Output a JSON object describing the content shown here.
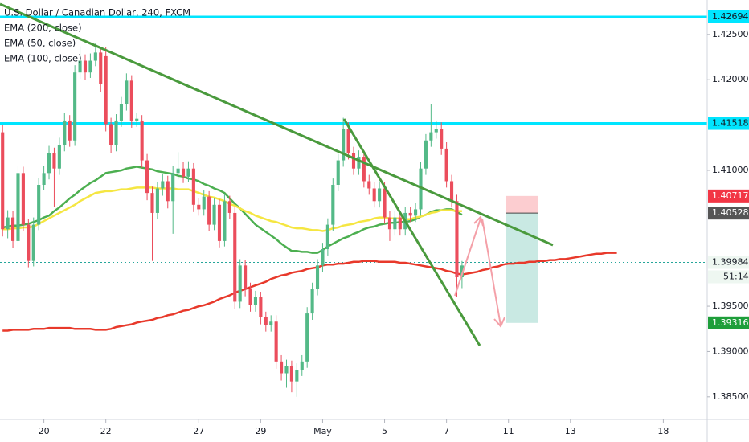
{
  "chart_data": {
    "type": "candlestick",
    "title": "U.S. Dollar / Canadian Dollar, 240, FXCM",
    "categories": [
      null,
      null,
      null,
      null,
      null,
      null,
      null,
      null,
      "20",
      null,
      null,
      null,
      null,
      null,
      null,
      null,
      null,
      null,
      null,
      null,
      "22",
      null,
      null,
      null,
      null,
      null,
      null,
      null,
      null,
      null,
      null,
      null,
      null,
      null,
      null,
      null,
      null,
      null,
      "27",
      null,
      null,
      null,
      null,
      null,
      null,
      null,
      null,
      null,
      null,
      null,
      "29",
      null,
      null,
      null,
      null,
      null,
      null,
      null,
      null,
      null,
      null,
      null,
      "May",
      null,
      null,
      null,
      null,
      null,
      null,
      null,
      null,
      null,
      null,
      null,
      "5",
      null,
      null,
      null,
      null,
      null,
      null,
      null,
      null,
      null,
      null,
      null,
      "7",
      null,
      null,
      null,
      null,
      null,
      null,
      null,
      null,
      null,
      null,
      null,
      "11",
      null,
      null,
      null,
      null,
      null,
      null,
      null,
      null,
      null,
      null,
      null,
      "13",
      null,
      null,
      null,
      null,
      null,
      null,
      null,
      null,
      null,
      null,
      null,
      null,
      null,
      null,
      null,
      null,
      null,
      "18",
      null,
      null,
      null,
      null,
      null,
      null,
      null,
      null
    ],
    "open": [
      1.4142,
      1.4035,
      1.4048,
      1.4022,
      1.4097,
      1.404,
      1.4,
      1.404,
      1.4084,
      1.4097,
      1.4119,
      1.4102,
      1.4128,
      1.4155,
      1.4133,
      1.4208,
      1.4221,
      1.4208,
      1.4221,
      1.423,
      1.4226,
      1.4151,
      1.4128,
      1.4155,
      1.4173,
      1.4199,
      1.4155,
      1.4155,
      1.4111,
      1.4075,
      1.4053,
      1.408,
      1.4088,
      1.4066,
      1.4097,
      1.4102,
      1.4093,
      1.4102,
      1.4062,
      1.4057,
      1.4071,
      1.404,
      1.4062,
      1.4022,
      1.4066,
      1.4053,
      1.3955,
      1.3995,
      1.3969,
      1.3951,
      1.396,
      1.3938,
      1.3929,
      1.3933,
      1.3889,
      1.3876,
      1.3884,
      1.3867,
      1.388,
      1.3889,
      1.3942,
      1.3969,
      1.3995,
      1.4013,
      1.404,
      1.4084,
      1.4111,
      1.4146,
      1.4119,
      1.4102,
      1.4115,
      1.4088,
      1.408,
      1.4066,
      1.408,
      1.4048,
      1.4035,
      1.4048,
      1.4035,
      1.4053,
      1.405,
      1.4057,
      1.4102,
      1.4133,
      1.4142,
      1.4146,
      1.4124,
      1.4088,
      1.4066,
      1.3982,
      null,
      null,
      null,
      null,
      null,
      null,
      null,
      null,
      null,
      null,
      null,
      null,
      null,
      null,
      null,
      null,
      null,
      null,
      null,
      null,
      null,
      null,
      null,
      null,
      null,
      null,
      null,
      null,
      null,
      null,
      null,
      null,
      null,
      null,
      null,
      null,
      null,
      null,
      null,
      null,
      null,
      null,
      null,
      null,
      null,
      null,
      null
    ],
    "high": [
      1.415,
      1.4056,
      1.4055,
      1.4105,
      1.4104,
      1.4046,
      1.4048,
      1.4092,
      1.4105,
      1.4127,
      1.4125,
      1.4136,
      1.4163,
      1.4161,
      1.4216,
      1.4237,
      1.4228,
      1.4229,
      1.424,
      1.4236,
      1.4236,
      1.4158,
      1.4162,
      1.4181,
      1.4207,
      1.4205,
      1.4163,
      1.4161,
      1.4118,
      1.4082,
      1.4087,
      1.4096,
      1.4094,
      1.4105,
      1.412,
      1.4109,
      1.411,
      1.4108,
      1.4069,
      1.4078,
      1.4077,
      1.4069,
      1.4068,
      1.4074,
      1.4072,
      1.406,
      1.4002,
      1.4001,
      1.3976,
      1.3967,
      1.3966,
      1.3944,
      1.394,
      1.394,
      1.3896,
      1.3891,
      1.389,
      1.3887,
      1.3896,
      1.3949,
      1.3976,
      1.4002,
      1.402,
      1.4047,
      1.4091,
      1.4118,
      1.4158,
      1.4153,
      1.4126,
      1.4122,
      1.4122,
      1.4095,
      1.4087,
      1.4087,
      1.4087,
      1.4055,
      1.4055,
      1.4055,
      1.406,
      1.406,
      1.4064,
      1.4109,
      1.414,
      1.4173,
      1.4155,
      1.4153,
      1.4131,
      1.4095,
      1.4073,
      1.4,
      null,
      null,
      null,
      null,
      null,
      null,
      null,
      null,
      null,
      null,
      null,
      null,
      null,
      null,
      null,
      null,
      null,
      null,
      null,
      null,
      null,
      null,
      null,
      null,
      null,
      null,
      null,
      null,
      null,
      null,
      null,
      null,
      null,
      null,
      null,
      null,
      null,
      null,
      null,
      null,
      null,
      null,
      null,
      null,
      null,
      null,
      null
    ],
    "low": [
      1.4027,
      1.4025,
      1.4014,
      1.4015,
      1.4033,
      1.3993,
      1.3994,
      1.4034,
      1.4078,
      1.409,
      1.406,
      1.4095,
      1.4121,
      1.4126,
      1.4127,
      1.4201,
      1.42,
      1.4202,
      1.4215,
      1.4186,
      1.4143,
      1.4119,
      1.4121,
      1.4148,
      1.4166,
      1.4147,
      1.4148,
      1.4103,
      1.4067,
      1.4,
      1.4046,
      1.4072,
      1.4058,
      1.403,
      1.409,
      1.4086,
      1.4087,
      1.4054,
      1.405,
      1.405,
      1.4033,
      1.4034,
      1.4015,
      1.4016,
      1.4046,
      1.3947,
      1.3948,
      1.3961,
      1.3944,
      1.3944,
      1.393,
      1.3922,
      1.3922,
      1.3881,
      1.3868,
      1.386,
      1.3855,
      1.385,
      1.3873,
      1.3882,
      1.3935,
      1.3962,
      1.3988,
      1.4006,
      1.4033,
      1.4077,
      1.4104,
      1.4112,
      1.4095,
      1.4095,
      1.4081,
      1.4073,
      1.4059,
      1.4059,
      1.4041,
      1.4022,
      1.4028,
      1.4028,
      1.4028,
      1.4043,
      1.4043,
      1.405,
      1.4095,
      1.4126,
      1.4135,
      1.4117,
      1.4081,
      1.4059,
      1.396,
      1.397,
      null,
      null,
      null,
      null,
      null,
      null,
      null,
      null,
      null,
      null,
      null,
      null,
      null,
      null,
      null,
      null,
      null,
      null,
      null,
      null,
      null,
      null,
      null,
      null,
      null,
      null,
      null,
      null,
      null,
      null,
      null,
      null,
      null,
      null,
      null,
      null,
      null,
      null,
      null,
      null,
      null,
      null,
      null,
      null,
      null,
      null,
      null
    ],
    "close": [
      1.4035,
      1.4048,
      1.4022,
      1.4097,
      1.404,
      1.4,
      1.404,
      1.4084,
      1.4097,
      1.4119,
      1.4102,
      1.4128,
      1.4155,
      1.4133,
      1.4208,
      1.4221,
      1.4208,
      1.4221,
      1.423,
      1.4195,
      1.4151,
      1.4128,
      1.4155,
      1.4173,
      1.4199,
      1.4155,
      1.4157,
      1.4111,
      1.4075,
      1.4053,
      1.408,
      1.4088,
      1.4066,
      1.4097,
      1.4102,
      1.4093,
      1.4102,
      1.4062,
      1.4057,
      1.4071,
      1.404,
      1.4062,
      1.4022,
      1.4066,
      1.4053,
      1.3955,
      1.3995,
      1.3969,
      1.3951,
      1.396,
      1.3938,
      1.3929,
      1.3933,
      1.3889,
      1.3876,
      1.3884,
      1.3867,
      1.388,
      1.3889,
      1.3942,
      1.3969,
      1.3995,
      1.4013,
      1.404,
      1.4084,
      1.4111,
      1.4146,
      1.4119,
      1.4102,
      1.4115,
      1.4088,
      1.408,
      1.4066,
      1.408,
      1.4048,
      1.4035,
      1.4048,
      1.4035,
      1.4053,
      1.405,
      1.4057,
      1.4102,
      1.4133,
      1.4142,
      1.4146,
      1.4124,
      1.4088,
      1.4066,
      1.3982,
      1.3995,
      null,
      null,
      null,
      null,
      null,
      null,
      null,
      null,
      null,
      null,
      null,
      null,
      null,
      null,
      null,
      null,
      null,
      null,
      null,
      null,
      null,
      null,
      null,
      null,
      null,
      null,
      null,
      null,
      null,
      null,
      null,
      null,
      null,
      null,
      null,
      null,
      null,
      null,
      null,
      null,
      null,
      null,
      null,
      null,
      null,
      null,
      null
    ],
    "up_color": "#53b987",
    "down_color": "#eb4d5c",
    "series": [
      {
        "name": "EMA (200, close)",
        "color": "#e8392b",
        "values": [
          1.3923,
          1.3923,
          1.3924,
          1.3924,
          1.3924,
          1.3924,
          1.3925,
          1.3925,
          1.3925,
          1.3926,
          1.3926,
          1.3926,
          1.3926,
          1.3926,
          1.3925,
          1.3925,
          1.3925,
          1.3925,
          1.3924,
          1.3924,
          1.3924,
          1.3925,
          1.3927,
          1.3928,
          1.3929,
          1.393,
          1.3932,
          1.3933,
          1.3934,
          1.3935,
          1.3937,
          1.3938,
          1.394,
          1.3941,
          1.3943,
          1.3945,
          1.3946,
          1.3948,
          1.395,
          1.3951,
          1.3953,
          1.3955,
          1.3958,
          1.396,
          1.3962,
          1.3965,
          1.3967,
          1.3969,
          1.3971,
          1.3973,
          1.3975,
          1.3977,
          1.398,
          1.3982,
          1.3984,
          1.3985,
          1.3987,
          1.3988,
          1.3989,
          1.3991,
          1.3992,
          1.3993,
          1.3995,
          1.3996,
          1.3996,
          1.3997,
          1.3997,
          1.3998,
          1.3999,
          1.3999,
          1.4,
          1.4,
          1.4,
          1.3999,
          1.3999,
          1.3999,
          1.3999,
          1.3998,
          1.3998,
          1.3997,
          1.3996,
          1.3995,
          1.3994,
          1.3993,
          1.3992,
          1.3991,
          1.3989,
          1.3988,
          1.3986,
          1.3985,
          1.3986,
          1.3987,
          1.3988,
          1.399,
          1.3991,
          1.3993,
          1.3994,
          1.3996,
          1.3997,
          1.3997,
          1.3998,
          1.3998,
          1.3999,
          1.3999,
          1.4,
          1.4,
          1.4001,
          1.4001,
          1.4002,
          1.4002,
          1.4003,
          1.4004,
          1.4005,
          1.4006,
          1.4007,
          1.4008,
          1.4008,
          1.4009,
          1.4009,
          1.4009,
          null,
          null,
          null,
          null,
          null,
          null,
          null,
          null,
          null,
          null,
          null,
          null,
          null,
          null,
          null,
          null,
          null
        ]
      },
      {
        "name": "EMA (50, close)",
        "color": "#4caf50",
        "values": [
          1.4037,
          1.4038,
          1.4039,
          1.4039,
          1.404,
          1.4041,
          1.4043,
          1.4045,
          1.4048,
          1.405,
          1.4055,
          1.4059,
          1.4064,
          1.4069,
          1.4073,
          1.4078,
          1.4082,
          1.4086,
          1.4089,
          1.4093,
          1.4097,
          1.4098,
          1.4099,
          1.41,
          1.4102,
          1.4103,
          1.4104,
          1.4103,
          1.4102,
          1.4101,
          1.4099,
          1.4098,
          1.4097,
          1.4096,
          1.4094,
          1.4093,
          1.4091,
          1.409,
          1.4088,
          1.4085,
          1.4083,
          1.408,
          1.4078,
          1.4075,
          1.4069,
          1.4063,
          1.4058,
          1.4052,
          1.4046,
          1.404,
          1.4036,
          1.4032,
          1.4028,
          1.4024,
          1.4019,
          1.4015,
          1.4011,
          1.4011,
          1.401,
          1.401,
          1.4009,
          1.4009,
          1.4012,
          1.4016,
          1.4019,
          1.4022,
          1.4025,
          1.4027,
          1.403,
          1.4032,
          1.4035,
          1.4037,
          1.4038,
          1.404,
          1.4041,
          1.4042,
          1.4042,
          1.4043,
          1.4043,
          1.4044,
          1.4046,
          1.4049,
          1.4051,
          1.4054,
          1.4056,
          1.4056,
          1.4057,
          1.4057,
          1.4054,
          1.4051,
          null,
          null,
          null,
          null,
          null,
          null,
          null,
          null,
          null,
          null,
          null,
          null,
          null,
          null,
          null,
          null,
          null,
          null,
          null,
          null,
          null,
          null,
          null,
          null,
          null,
          null,
          null,
          null,
          null,
          null,
          null,
          null,
          null,
          null,
          null,
          null,
          null,
          null,
          null,
          null,
          null,
          null,
          null,
          null,
          null,
          null,
          null
        ]
      },
      {
        "name": "EMA (100, close)",
        "color": "#f5e642",
        "values": [
          1.4035,
          1.4035,
          1.4036,
          1.4036,
          1.4037,
          1.4037,
          1.4038,
          1.4041,
          1.4044,
          1.4047,
          1.405,
          1.4053,
          1.4056,
          1.4059,
          1.4062,
          1.4066,
          1.4069,
          1.4072,
          1.4075,
          1.4076,
          1.4077,
          1.4077,
          1.4078,
          1.4079,
          1.4079,
          1.408,
          1.4081,
          1.4081,
          1.4081,
          1.4081,
          1.408,
          1.408,
          1.408,
          1.408,
          1.4079,
          1.4079,
          1.4079,
          1.4077,
          1.4075,
          1.4073,
          1.4071,
          1.407,
          1.4068,
          1.4066,
          1.4063,
          1.4061,
          1.4058,
          1.4055,
          1.4053,
          1.405,
          1.4048,
          1.4046,
          1.4044,
          1.4043,
          1.4041,
          1.4039,
          1.4037,
          1.4036,
          1.4036,
          1.4035,
          1.4034,
          1.4034,
          1.4033,
          1.4034,
          1.4036,
          1.4037,
          1.4039,
          1.404,
          1.4041,
          1.4043,
          1.4044,
          1.4045,
          1.4047,
          1.4048,
          1.4048,
          1.4047,
          1.4047,
          1.4047,
          1.4046,
          1.4046,
          1.4048,
          1.4049,
          1.4051,
          1.4053,
          1.4054,
          1.4056,
          1.4056,
          1.4056,
          1.4055,
          1.4055,
          null,
          null,
          null,
          null,
          null,
          null,
          null,
          null,
          null,
          null,
          null,
          null,
          null,
          null,
          null,
          null,
          null,
          null,
          null,
          null,
          null,
          null,
          null,
          null,
          null,
          null,
          null,
          null,
          null,
          null,
          null,
          null,
          null,
          null,
          null,
          null,
          null,
          null,
          null,
          null,
          null,
          null,
          null,
          null,
          null,
          null,
          null
        ]
      }
    ],
    "ylim": [
      1.3825,
      1.4288
    ],
    "yticks": [
      {
        "value": 1.425,
        "label": "1.42500"
      },
      {
        "value": 1.42,
        "label": "1.42000"
      },
      {
        "value": 1.41,
        "label": "1.41000"
      },
      {
        "value": 1.395,
        "label": "1.39500"
      },
      {
        "value": 1.39,
        "label": "1.39000"
      },
      {
        "value": 1.385,
        "label": "1.38500"
      }
    ],
    "hlines": [
      {
        "value": 1.42694,
        "color": "#00e5ff"
      },
      {
        "value": 1.41518,
        "color": "#00e5ff"
      }
    ],
    "last_price": 1.39984,
    "last_color": "#26a69a",
    "countdown": "51:14",
    "position": {
      "stop": 1.40717,
      "entry": 1.40528,
      "target": 1.39316
    }
  }
}
